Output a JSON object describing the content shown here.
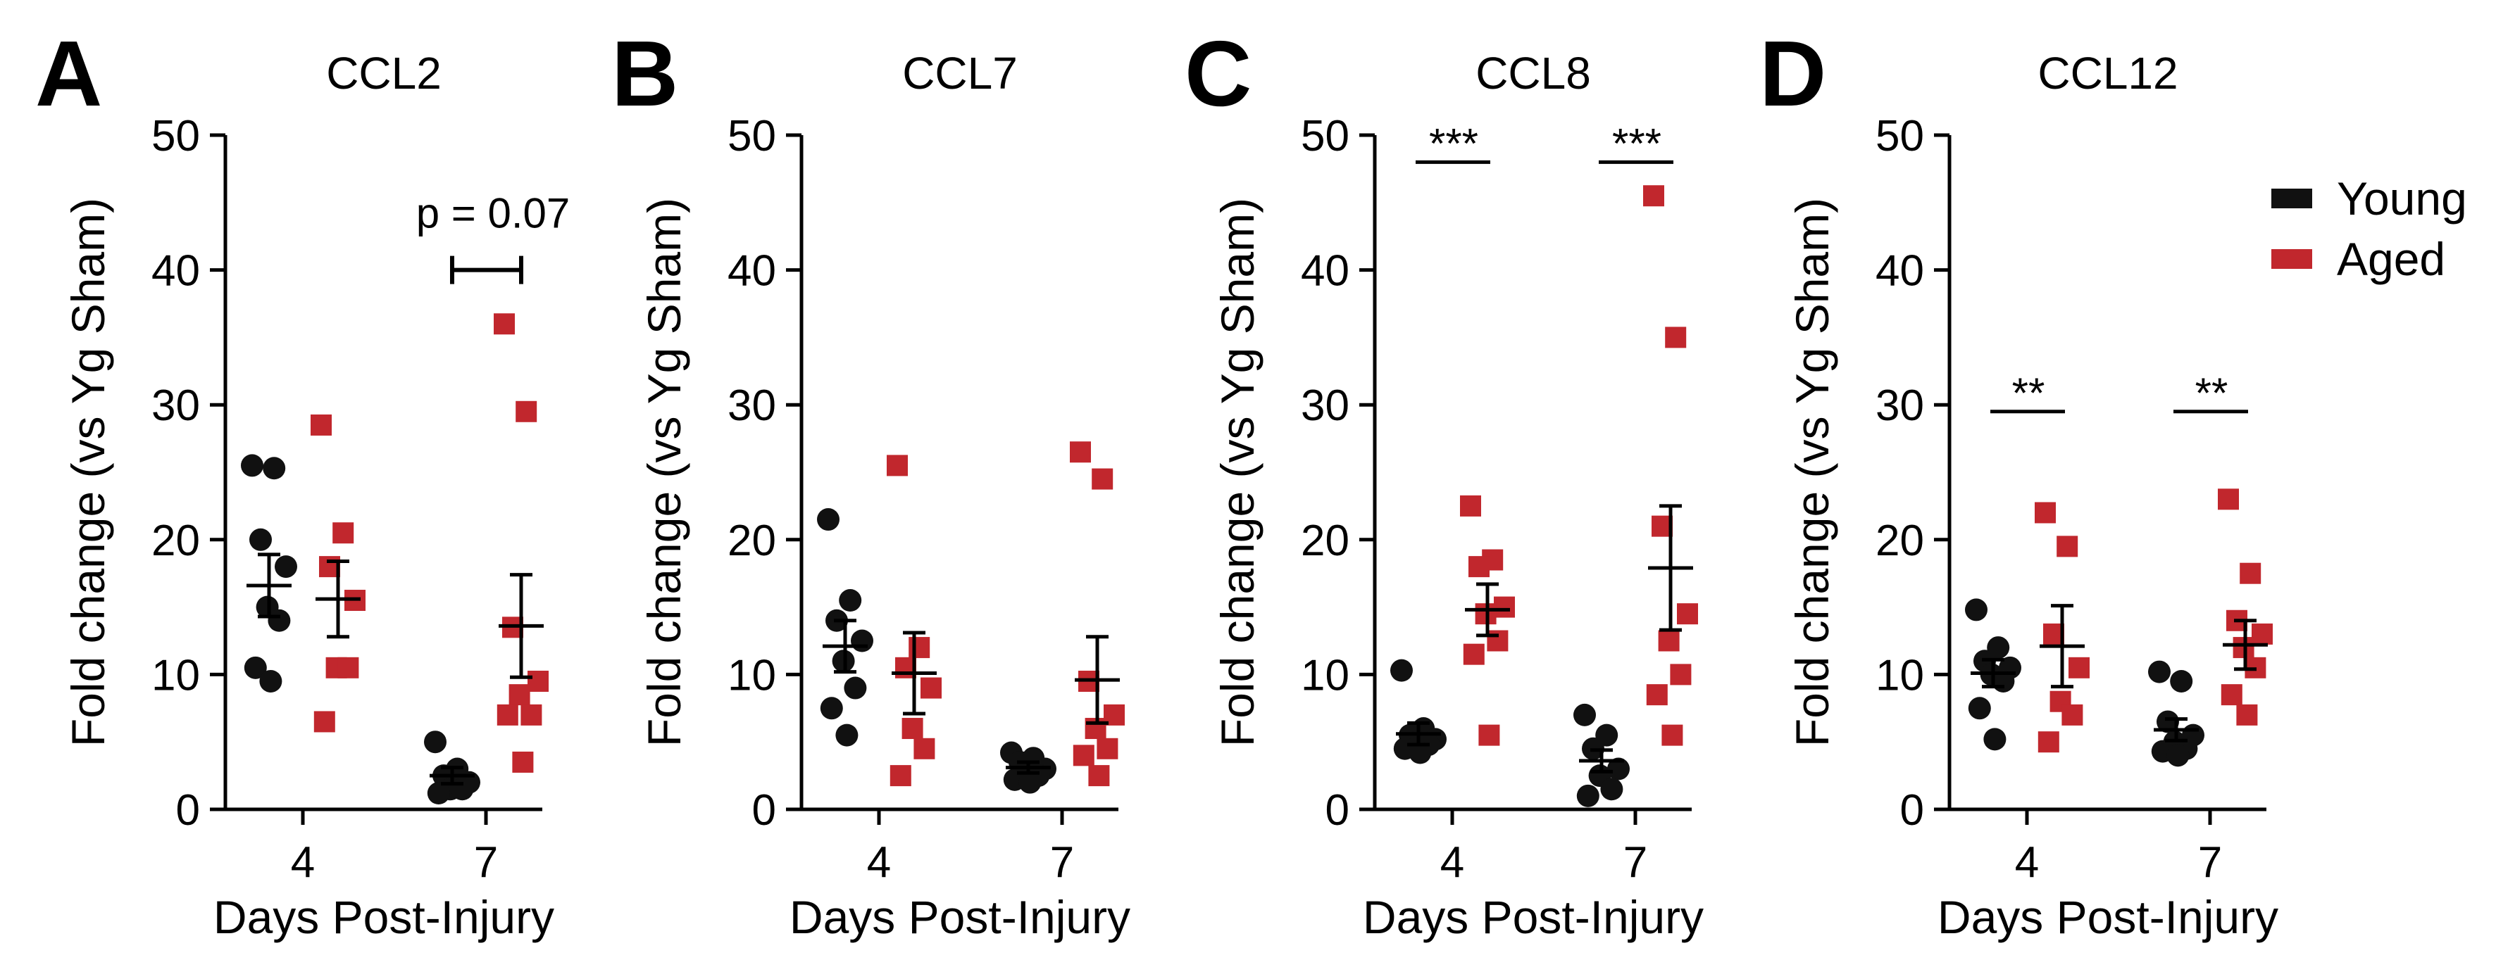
{
  "colors": {
    "young": "#111111",
    "aged": "#c1272d",
    "axis": "#000000"
  },
  "legend": [
    {
      "name": "Young",
      "color": "#111111"
    },
    {
      "name": "Aged",
      "color": "#c1272d"
    }
  ],
  "chart_data": [
    {
      "type": "scatter",
      "letter": "A",
      "title": "CCL2",
      "xlabel": "Days Post-Injury",
      "ylabel": "Fold change (vs Yg Sham)",
      "categories": [
        "4",
        "7"
      ],
      "ylim": [
        0,
        50
      ],
      "yticks": [
        "0",
        "10",
        "20",
        "30",
        "40",
        "50"
      ],
      "series": [
        {
          "name": "Young",
          "groups": [
            {
              "category": "4",
              "points": [
                25.5,
                25.3,
                20,
                18,
                15,
                14,
                10.5,
                9.5
              ],
              "mean": 16.6,
              "sem": 2.3
            },
            {
              "category": "7",
              "points": [
                5,
                3,
                2.5,
                2,
                1.5,
                1.5,
                1.2
              ],
              "mean": 2.5,
              "sem": 0.6
            }
          ]
        },
        {
          "name": "Aged",
          "groups": [
            {
              "category": "4",
              "points": [
                28.5,
                20.5,
                18,
                15.5,
                10.5,
                10.5,
                6.5
              ],
              "mean": 15.6,
              "sem": 2.8
            },
            {
              "category": "7",
              "points": [
                36,
                29.5,
                13.5,
                9.5,
                8.5,
                7,
                7,
                3.5
              ],
              "mean": 13.6,
              "sem": 3.8
            }
          ]
        }
      ],
      "annotations": [
        {
          "text": "p = 0.07",
          "category": "7",
          "y": 40,
          "style": "capped"
        }
      ]
    },
    {
      "type": "scatter",
      "letter": "B",
      "title": "CCL7",
      "xlabel": "Days Post-Injury",
      "ylabel": "Fold change (vs Yg Sham)",
      "categories": [
        "4",
        "7"
      ],
      "ylim": [
        0,
        50
      ],
      "yticks": [
        "0",
        "10",
        "20",
        "30",
        "40",
        "50"
      ],
      "series": [
        {
          "name": "Young",
          "groups": [
            {
              "category": "4",
              "points": [
                21.5,
                15.5,
                14,
                12.5,
                11,
                9,
                7.5,
                5.5
              ],
              "mean": 12.1,
              "sem": 1.9
            },
            {
              "category": "7",
              "points": [
                4.2,
                3.8,
                3.5,
                3,
                2.8,
                2.5,
                2.2,
                2
              ],
              "mean": 3.1,
              "sem": 0.4
            }
          ]
        },
        {
          "name": "Aged",
          "groups": [
            {
              "category": "4",
              "points": [
                25.5,
                12,
                10.5,
                9,
                6,
                4.5,
                2.5
              ],
              "mean": 10.1,
              "sem": 3.0
            },
            {
              "category": "7",
              "points": [
                26.5,
                24.5,
                9.5,
                7,
                6,
                4.5,
                4,
                2.5
              ],
              "mean": 9.6,
              "sem": 3.2
            }
          ]
        }
      ],
      "annotations": []
    },
    {
      "type": "scatter",
      "letter": "C",
      "title": "CCL8",
      "xlabel": "Days Post-Injury",
      "ylabel": "Fold change (vs Yg Sham)",
      "categories": [
        "4",
        "7"
      ],
      "ylim": [
        0,
        50
      ],
      "yticks": [
        "0",
        "10",
        "20",
        "30",
        "40",
        "50"
      ],
      "series": [
        {
          "name": "Young",
          "groups": [
            {
              "category": "4",
              "points": [
                10.3,
                6,
                5.5,
                5.2,
                5,
                4.8,
                4.5,
                4.2
              ],
              "mean": 5.6,
              "sem": 0.8
            },
            {
              "category": "7",
              "points": [
                7,
                5.5,
                4.5,
                3,
                2.5,
                1.5,
                1
              ],
              "mean": 3.6,
              "sem": 0.8
            }
          ]
        },
        {
          "name": "Aged",
          "groups": [
            {
              "category": "4",
              "points": [
                22.5,
                18.5,
                18,
                15,
                14.5,
                12.5,
                11.5,
                5.5
              ],
              "mean": 14.8,
              "sem": 1.9
            },
            {
              "category": "7",
              "points": [
                45.5,
                35,
                21,
                14.5,
                12.5,
                10,
                8.5,
                5.5
              ],
              "mean": 17.9,
              "sem": 4.6
            }
          ]
        }
      ],
      "annotations": [
        {
          "text": "***",
          "category": "4",
          "y": 48,
          "style": "line"
        },
        {
          "text": "***",
          "category": "7",
          "y": 48,
          "style": "line"
        }
      ]
    },
    {
      "type": "scatter",
      "letter": "D",
      "title": "CCL12",
      "xlabel": "Days Post-Injury",
      "ylabel": "Fold change (vs Yg Sham)",
      "categories": [
        "4",
        "7"
      ],
      "ylim": [
        0,
        50
      ],
      "yticks": [
        "0",
        "10",
        "20",
        "30",
        "40",
        "50"
      ],
      "series": [
        {
          "name": "Young",
          "groups": [
            {
              "category": "4",
              "points": [
                14.8,
                12,
                11,
                10.5,
                10,
                9.5,
                7.5,
                5.2
              ],
              "mean": 10.1,
              "sem": 1.0
            },
            {
              "category": "7",
              "points": [
                10.2,
                9.5,
                6.5,
                5.5,
                5,
                4.5,
                4.3,
                4
              ],
              "mean": 5.9,
              "sem": 0.8
            }
          ]
        },
        {
          "name": "Aged",
          "groups": [
            {
              "category": "4",
              "points": [
                22,
                19.5,
                13,
                10.5,
                8,
                7,
                5
              ],
              "mean": 12.1,
              "sem": 3.0
            },
            {
              "category": "7",
              "points": [
                23,
                17.5,
                14,
                13,
                12,
                10.5,
                8.5,
                7
              ],
              "mean": 12.2,
              "sem": 1.8
            }
          ]
        }
      ],
      "annotations": [
        {
          "text": "**",
          "category": "4",
          "y": 29.5,
          "style": "line"
        },
        {
          "text": "**",
          "category": "7",
          "y": 29.5,
          "style": "line"
        }
      ]
    }
  ]
}
